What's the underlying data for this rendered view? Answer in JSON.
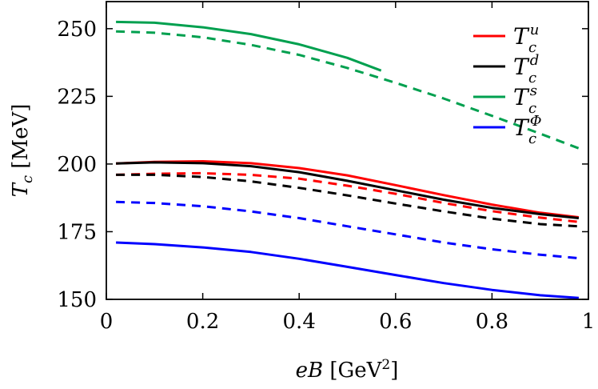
{
  "chart_data": {
    "type": "line",
    "title": "",
    "xlabel": "eB [GeV²]",
    "ylabel": "T_c [MeV]",
    "xlim": [
      0,
      1
    ],
    "ylim": [
      150,
      260
    ],
    "x_ticks": [
      "0",
      "0.2",
      "0.4",
      "0.6",
      "0.8",
      "1"
    ],
    "y_ticks": [
      "150",
      "175",
      "200",
      "225",
      "250"
    ],
    "grid": false,
    "legend_position": "top-right",
    "legend_entries": [
      {
        "base": "T",
        "sub": "c",
        "sup": "u",
        "color": "#ff0000"
      },
      {
        "base": "T",
        "sub": "c",
        "sup": "d",
        "color": "#000000"
      },
      {
        "base": "T",
        "sub": "c",
        "sup": "s",
        "color": "#00a04f"
      },
      {
        "base": "T",
        "sub": "c",
        "sup": "Φ",
        "color": "#0000ff"
      }
    ],
    "series": [
      {
        "name": "T_c^u",
        "style": "solid",
        "color": "#ff0000",
        "x": [
          0.02,
          0.1,
          0.2,
          0.3,
          0.4,
          0.5,
          0.6,
          0.7,
          0.8,
          0.9,
          0.98
        ],
        "y": [
          200.2,
          200.8,
          201.0,
          200.3,
          198.5,
          195.8,
          192.2,
          188.5,
          185.0,
          182.0,
          180.3
        ]
      },
      {
        "name": "T_c^d",
        "style": "solid",
        "color": "#000000",
        "x": [
          0.02,
          0.1,
          0.2,
          0.3,
          0.4,
          0.5,
          0.6,
          0.7,
          0.8,
          0.9,
          0.98
        ],
        "y": [
          200.2,
          200.6,
          200.3,
          199.2,
          197.0,
          193.8,
          190.3,
          186.8,
          183.8,
          181.5,
          180.0
        ]
      },
      {
        "name": "T_c^s",
        "style": "solid",
        "color": "#00a04f",
        "x": [
          0.02,
          0.1,
          0.2,
          0.3,
          0.4,
          0.5,
          0.57
        ],
        "y": [
          252.5,
          252.2,
          250.5,
          248.0,
          244.2,
          239.2,
          234.5
        ]
      },
      {
        "name": "T_c^Phi",
        "style": "solid",
        "color": "#0000ff",
        "x": [
          0.02,
          0.1,
          0.2,
          0.3,
          0.4,
          0.5,
          0.6,
          0.7,
          0.8,
          0.9,
          0.98
        ],
        "y": [
          171.0,
          170.4,
          169.2,
          167.5,
          165.0,
          162.0,
          159.0,
          156.0,
          153.5,
          151.5,
          150.5
        ]
      },
      {
        "name": "T_c^u dashed",
        "style": "dashed",
        "color": "#ff0000",
        "x": [
          0.02,
          0.1,
          0.2,
          0.3,
          0.4,
          0.5,
          0.6,
          0.7,
          0.8,
          0.9,
          0.98
        ],
        "y": [
          196.0,
          196.4,
          196.6,
          196.0,
          194.6,
          192.0,
          189.0,
          185.6,
          182.6,
          180.2,
          178.6
        ]
      },
      {
        "name": "T_c^d dashed",
        "style": "dashed",
        "color": "#000000",
        "x": [
          0.02,
          0.1,
          0.2,
          0.3,
          0.4,
          0.5,
          0.6,
          0.7,
          0.8,
          0.9,
          0.98
        ],
        "y": [
          196.0,
          196.0,
          195.2,
          193.6,
          191.2,
          188.4,
          185.4,
          182.5,
          179.8,
          177.8,
          177.0
        ]
      },
      {
        "name": "T_c^s dashed",
        "style": "dashed",
        "color": "#00a04f",
        "x": [
          0.02,
          0.1,
          0.2,
          0.3,
          0.4,
          0.5,
          0.6,
          0.7,
          0.8,
          0.9,
          0.98
        ],
        "y": [
          249.0,
          248.5,
          246.8,
          244.0,
          240.3,
          235.5,
          230.0,
          224.2,
          217.8,
          211.2,
          205.8
        ]
      },
      {
        "name": "T_c^Phi dashed",
        "style": "dashed",
        "color": "#0000ff",
        "x": [
          0.02,
          0.1,
          0.2,
          0.3,
          0.4,
          0.5,
          0.6,
          0.7,
          0.8,
          0.9,
          0.98
        ],
        "y": [
          186.0,
          185.6,
          184.4,
          182.5,
          180.0,
          177.0,
          174.0,
          171.0,
          168.5,
          166.5,
          165.2
        ]
      }
    ]
  }
}
